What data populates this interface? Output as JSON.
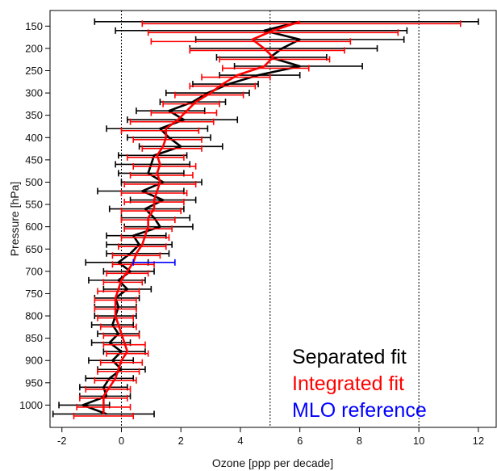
{
  "chart_data": {
    "type": "line",
    "xlabel": "Ozone [ppp per decade]",
    "ylabel": "Pressure [hPa]",
    "xlim": [
      -2.4,
      12.6
    ],
    "ylim": [
      1050,
      115
    ],
    "x_ticks": [
      -2,
      0,
      2,
      4,
      6,
      8,
      10,
      12
    ],
    "y_ticks": [
      150,
      200,
      250,
      300,
      350,
      400,
      450,
      500,
      550,
      600,
      650,
      700,
      750,
      800,
      850,
      900,
      950,
      1000
    ],
    "reference_lines": [
      0,
      5,
      10
    ],
    "legend": {
      "position": "bottom-right",
      "entries": [
        {
          "label": "Separated fit",
          "color": "#000000"
        },
        {
          "label": "Integrated fit",
          "color": "#ff0000"
        },
        {
          "label": "MLO reference",
          "color": "#0000ff"
        }
      ]
    },
    "series": [
      {
        "name": "Separated fit",
        "color": "#000000",
        "points": [
          {
            "p": 140,
            "x": 6.0,
            "lo": -0.9,
            "hi": 12.0
          },
          {
            "p": 160,
            "x": 4.8,
            "lo": -0.2,
            "hi": 9.6
          },
          {
            "p": 180,
            "x": 6.0,
            "lo": 2.5,
            "hi": 9.5
          },
          {
            "p": 200,
            "x": 5.4,
            "lo": 2.3,
            "hi": 8.6
          },
          {
            "p": 220,
            "x": 5.0,
            "lo": 3.2,
            "hi": 6.9
          },
          {
            "p": 240,
            "x": 6.0,
            "lo": 3.8,
            "hi": 8.1
          },
          {
            "p": 260,
            "x": 4.6,
            "lo": 3.3,
            "hi": 6.0
          },
          {
            "p": 280,
            "x": 3.6,
            "lo": 2.4,
            "hi": 4.6
          },
          {
            "p": 300,
            "x": 2.9,
            "lo": 1.5,
            "hi": 4.3
          },
          {
            "p": 320,
            "x": 2.4,
            "lo": 1.3,
            "hi": 3.5
          },
          {
            "p": 340,
            "x": 1.6,
            "lo": 0.5,
            "hi": 2.8
          },
          {
            "p": 360,
            "x": 2.1,
            "lo": 0.2,
            "hi": 3.9
          },
          {
            "p": 380,
            "x": 1.3,
            "lo": -0.5,
            "hi": 2.9
          },
          {
            "p": 400,
            "x": 1.6,
            "lo": 0.2,
            "hi": 3.0
          },
          {
            "p": 420,
            "x": 2.0,
            "lo": 0.6,
            "hi": 3.4
          },
          {
            "p": 440,
            "x": 1.1,
            "lo": -0.1,
            "hi": 2.2
          },
          {
            "p": 460,
            "x": 1.0,
            "lo": -0.2,
            "hi": 2.3
          },
          {
            "p": 480,
            "x": 0.9,
            "lo": -0.1,
            "hi": 2.1
          },
          {
            "p": 500,
            "x": 1.4,
            "lo": 0.0,
            "hi": 2.7
          },
          {
            "p": 520,
            "x": 0.7,
            "lo": -0.8,
            "hi": 2.1
          },
          {
            "p": 540,
            "x": 1.4,
            "lo": 0.3,
            "hi": 2.5
          },
          {
            "p": 560,
            "x": 0.8,
            "lo": -0.4,
            "hi": 2.1
          },
          {
            "p": 580,
            "x": 1.1,
            "lo": 0.0,
            "hi": 2.3
          },
          {
            "p": 600,
            "x": 1.3,
            "lo": 0.1,
            "hi": 2.4
          },
          {
            "p": 620,
            "x": 0.4,
            "lo": -0.5,
            "hi": 1.5
          },
          {
            "p": 640,
            "x": 0.6,
            "lo": -0.5,
            "hi": 1.7
          },
          {
            "p": 660,
            "x": 0.3,
            "lo": -0.5,
            "hi": 1.6
          },
          {
            "p": 680,
            "x": -0.1,
            "lo": -1.2,
            "hi": 0.9
          },
          {
            "p": 700,
            "x": 0.3,
            "lo": -0.6,
            "hi": 1.1
          },
          {
            "p": 720,
            "x": -0.1,
            "lo": -1.1,
            "hi": 0.8
          },
          {
            "p": 740,
            "x": 0.2,
            "lo": -0.6,
            "hi": 1.0
          },
          {
            "p": 760,
            "x": -0.2,
            "lo": -0.9,
            "hi": 0.6
          },
          {
            "p": 780,
            "x": -0.1,
            "lo": -0.9,
            "hi": 0.5
          },
          {
            "p": 800,
            "x": -0.2,
            "lo": -0.9,
            "hi": 0.5
          },
          {
            "p": 820,
            "x": -0.3,
            "lo": -1.0,
            "hi": 0.4
          },
          {
            "p": 840,
            "x": -0.1,
            "lo": -0.8,
            "hi": 0.6
          },
          {
            "p": 860,
            "x": -0.4,
            "lo": -1.0,
            "hi": 0.3
          },
          {
            "p": 880,
            "x": 0.0,
            "lo": -0.6,
            "hi": 0.8
          },
          {
            "p": 900,
            "x": -0.3,
            "lo": -1.1,
            "hi": 0.4
          },
          {
            "p": 920,
            "x": 0.0,
            "lo": -0.8,
            "hi": 0.8
          },
          {
            "p": 940,
            "x": -0.4,
            "lo": -1.2,
            "hi": 0.4
          },
          {
            "p": 960,
            "x": -0.6,
            "lo": -1.4,
            "hi": 0.2
          },
          {
            "p": 980,
            "x": -0.5,
            "lo": -1.4,
            "hi": 0.3
          },
          {
            "p": 1000,
            "x": -1.3,
            "lo": -2.1,
            "hi": -0.4
          },
          {
            "p": 1020,
            "x": -0.5,
            "lo": -2.3,
            "hi": 1.1
          }
        ]
      },
      {
        "name": "Integrated fit",
        "color": "#ff0000",
        "points": [
          {
            "p": 140,
            "x": 6.0,
            "lo": 0.7,
            "hi": 11.4
          },
          {
            "p": 160,
            "x": 5.1,
            "lo": 0.9,
            "hi": 9.3
          },
          {
            "p": 180,
            "x": 4.4,
            "lo": 1.0,
            "hi": 7.7
          },
          {
            "p": 200,
            "x": 4.8,
            "lo": 2.3,
            "hi": 7.5
          },
          {
            "p": 220,
            "x": 5.1,
            "lo": 3.3,
            "hi": 7.0
          },
          {
            "p": 240,
            "x": 4.8,
            "lo": 3.4,
            "hi": 6.3
          },
          {
            "p": 260,
            "x": 3.9,
            "lo": 2.7,
            "hi": 5.0
          },
          {
            "p": 280,
            "x": 3.4,
            "lo": 2.3,
            "hi": 4.5
          },
          {
            "p": 300,
            "x": 3.0,
            "lo": 1.8,
            "hi": 4.1
          },
          {
            "p": 320,
            "x": 2.5,
            "lo": 1.4,
            "hi": 3.3
          },
          {
            "p": 340,
            "x": 2.2,
            "lo": 1.0,
            "hi": 3.2
          },
          {
            "p": 360,
            "x": 1.9,
            "lo": 0.3,
            "hi": 3.1
          },
          {
            "p": 380,
            "x": 1.5,
            "lo": 0.0,
            "hi": 2.6
          },
          {
            "p": 400,
            "x": 1.5,
            "lo": 0.4,
            "hi": 2.7
          },
          {
            "p": 420,
            "x": 1.4,
            "lo": 0.7,
            "hi": 2.7
          },
          {
            "p": 440,
            "x": 1.2,
            "lo": 0.2,
            "hi": 2.1
          },
          {
            "p": 460,
            "x": 1.3,
            "lo": 0.4,
            "hi": 2.5
          },
          {
            "p": 480,
            "x": 1.2,
            "lo": 0.3,
            "hi": 2.4
          },
          {
            "p": 500,
            "x": 1.3,
            "lo": 0.1,
            "hi": 2.5
          },
          {
            "p": 520,
            "x": 1.2,
            "lo": 0.0,
            "hi": 2.2
          },
          {
            "p": 540,
            "x": 1.1,
            "lo": 0.1,
            "hi": 2.1
          },
          {
            "p": 560,
            "x": 1.1,
            "lo": 0.0,
            "hi": 2.0
          },
          {
            "p": 580,
            "x": 0.9,
            "lo": 0.0,
            "hi": 1.8
          },
          {
            "p": 600,
            "x": 0.9,
            "lo": 0.1,
            "hi": 1.7
          },
          {
            "p": 620,
            "x": 0.8,
            "lo": 0.0,
            "hi": 1.6
          },
          {
            "p": 640,
            "x": 0.7,
            "lo": -0.1,
            "hi": 1.5
          },
          {
            "p": 660,
            "x": 0.5,
            "lo": -0.3,
            "hi": 1.3
          },
          {
            "p": 680,
            "x": 0.4,
            "lo": -0.3,
            "hi": 1.1
          },
          {
            "p": 700,
            "x": 0.2,
            "lo": -0.5,
            "hi": 0.9
          },
          {
            "p": 720,
            "x": 0.0,
            "lo": -0.6,
            "hi": 0.7
          },
          {
            "p": 740,
            "x": -0.1,
            "lo": -0.8,
            "hi": 0.6
          },
          {
            "p": 760,
            "x": -0.2,
            "lo": -0.9,
            "hi": 0.5
          },
          {
            "p": 780,
            "x": -0.2,
            "lo": -0.9,
            "hi": 0.5
          },
          {
            "p": 800,
            "x": -0.2,
            "lo": -0.8,
            "hi": 0.4
          },
          {
            "p": 820,
            "x": -0.1,
            "lo": -0.7,
            "hi": 0.5
          },
          {
            "p": 840,
            "x": 0.0,
            "lo": -0.6,
            "hi": 0.6
          },
          {
            "p": 860,
            "x": 0.1,
            "lo": -0.6,
            "hi": 0.8
          },
          {
            "p": 880,
            "x": 0.2,
            "lo": -0.5,
            "hi": 0.9
          },
          {
            "p": 900,
            "x": 0.0,
            "lo": -0.7,
            "hi": 0.7
          },
          {
            "p": 920,
            "x": -0.1,
            "lo": -0.8,
            "hi": 0.6
          },
          {
            "p": 940,
            "x": -0.2,
            "lo": -0.9,
            "hi": 0.5
          },
          {
            "p": 960,
            "x": -0.4,
            "lo": -1.2,
            "hi": 0.3
          },
          {
            "p": 980,
            "x": -0.6,
            "lo": -1.4,
            "hi": 0.2
          },
          {
            "p": 1000,
            "x": -0.6,
            "lo": -1.5,
            "hi": 0.3
          },
          {
            "p": 1020,
            "x": -0.6,
            "lo": -1.6,
            "hi": 0.4
          }
        ]
      },
      {
        "name": "MLO reference",
        "color": "#0000ff",
        "line": false,
        "points": [
          {
            "p": 680,
            "x": 1.1,
            "lo": 0.4,
            "hi": 1.8
          }
        ]
      }
    ]
  }
}
